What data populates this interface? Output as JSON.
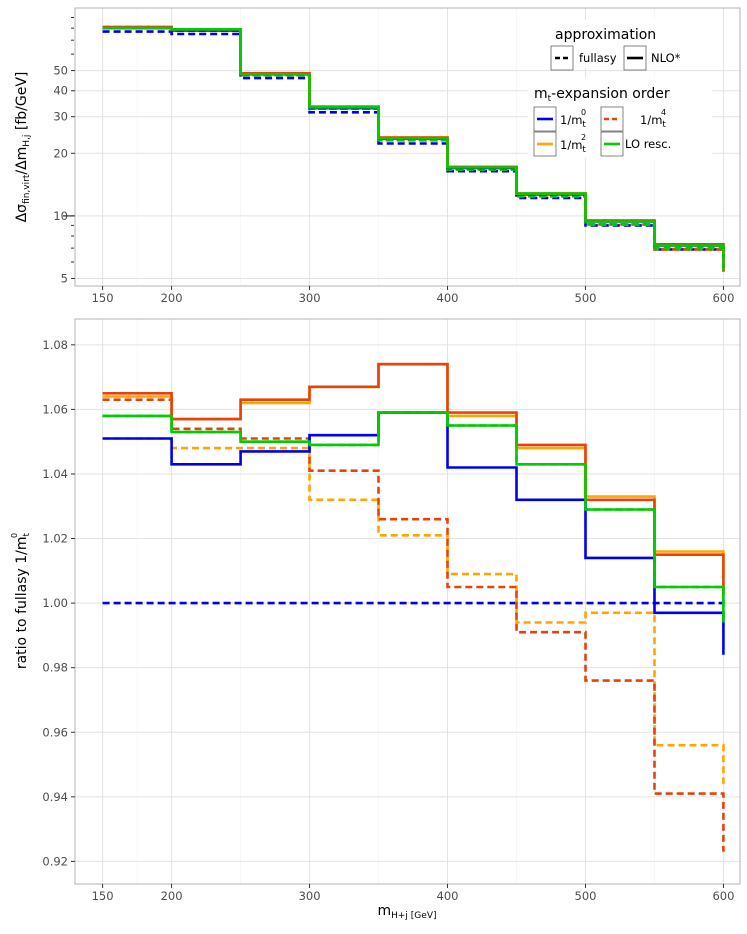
{
  "colors": {
    "mt0": "#0000ee",
    "mt2": "#ffa500",
    "mt4": "#e8420a",
    "lo": "#00cc00"
  },
  "legend": {
    "approx_title": "approximation",
    "approx_items": [
      "fullasy",
      "NLO*"
    ],
    "exp_title_main": "m",
    "exp_title_sub": "t",
    "exp_title_rest": "-expansion order",
    "exp_items": [
      {
        "pre": "1/m",
        "sub": "t",
        "sup": "0",
        "key": "mt0"
      },
      {
        "pre": "1/m",
        "sub": "t",
        "sup": "4",
        "key": "mt4"
      },
      {
        "pre": "1/m",
        "sub": "t",
        "sup": "2",
        "key": "mt2"
      },
      {
        "pre": "LO resc.",
        "sub": "",
        "sup": "",
        "key": "lo"
      }
    ]
  },
  "chart_data": [
    {
      "type": "line",
      "style": "step",
      "title": "",
      "ylabel": {
        "main": "Δσ",
        "sub1": "fin,virt",
        "mid": "/Δm",
        "sub2": "H,j",
        "rest": " [fb/GeV]"
      },
      "xlabel": "",
      "xlim": [
        130,
        612
      ],
      "ylim": [
        4.6,
        100
      ],
      "yscale": "log",
      "x_ticks": [
        150,
        200,
        300,
        400,
        500,
        600
      ],
      "y_ticks": [
        5,
        10,
        20,
        30,
        40,
        50
      ],
      "x_edges": [
        150,
        200,
        250,
        300,
        350,
        400,
        450,
        500,
        550,
        600
      ],
      "series": [
        {
          "name": "1/m_t^0 fullasy",
          "key": "mt0",
          "dash": true,
          "values": [
            77,
            75,
            46,
            31.5,
            22.3,
            16.4,
            12.2,
            9.0,
            6.9
          ]
        },
        {
          "name": "1/m_t^2 fullasy",
          "key": "mt2",
          "dash": true,
          "values": [
            80,
            78,
            47.5,
            32.8,
            23.2,
            16.8,
            12.5,
            9.1,
            6.9
          ]
        },
        {
          "name": "1/m_t^4 fullasy",
          "key": "mt4",
          "dash": true,
          "values": [
            81,
            78,
            47.5,
            32.8,
            23.2,
            16.8,
            12.5,
            9.1,
            6.9
          ]
        },
        {
          "name": "LO resc. fullasy",
          "key": "lo",
          "dash": true,
          "values": [
            80,
            78,
            47.5,
            32.8,
            23.1,
            16.7,
            12.4,
            9.1,
            7.0
          ]
        },
        {
          "name": "1/m_t^0 NLO*",
          "key": "mt0",
          "dash": false,
          "values": [
            80,
            78,
            48,
            33.0,
            23.5,
            17.0,
            12.7,
            9.4,
            7.2
          ]
        },
        {
          "name": "1/m_t^2 NLO*",
          "key": "mt2",
          "dash": false,
          "values": [
            81,
            79,
            48.5,
            33.5,
            23.8,
            17.2,
            12.8,
            9.5,
            7.3
          ]
        },
        {
          "name": "1/m_t^4 NLO*",
          "key": "mt4",
          "dash": false,
          "values": [
            81,
            79,
            48.5,
            33.5,
            23.8,
            17.2,
            12.8,
            9.5,
            7.3
          ]
        },
        {
          "name": "LO resc. NLO*",
          "key": "lo",
          "dash": false,
          "values": [
            80,
            79,
            48,
            33.3,
            23.6,
            17.1,
            12.8,
            9.4,
            7.2
          ]
        }
      ]
    },
    {
      "type": "line",
      "style": "step",
      "title": "",
      "ylabel": {
        "main": "ratio to fullasy  1/m",
        "sub": "t",
        "sup": "0"
      },
      "xlabel": {
        "main": "m",
        "sub": "H+j [GeV]"
      },
      "xlim": [
        130,
        612
      ],
      "ylim": [
        0.913,
        1.088
      ],
      "yscale": "linear",
      "x_ticks": [
        150,
        200,
        300,
        400,
        500,
        600
      ],
      "y_ticks": [
        0.92,
        0.94,
        0.96,
        0.98,
        1.0,
        1.02,
        1.04,
        1.06,
        1.08
      ],
      "y_tick_labels": [
        "0.92",
        "0.94",
        "0.96",
        "0.98",
        "1.00",
        "1.02",
        "1.04",
        "1.06",
        "1.08"
      ],
      "x_edges": [
        150,
        200,
        250,
        300,
        350,
        400,
        450,
        500,
        550,
        600
      ],
      "series": [
        {
          "name": "1/m_t^0 fullasy",
          "key": "mt0",
          "dash": true,
          "values": [
            1.0,
            1.0,
            1.0,
            1.0,
            1.0,
            1.0,
            1.0,
            1.0,
            1.0
          ]
        },
        {
          "name": "1/m_t^2 fullasy",
          "key": "mt2",
          "dash": true,
          "values": [
            1.051,
            1.048,
            1.048,
            1.032,
            1.021,
            1.009,
            0.994,
            0.997,
            0.956
          ]
        },
        {
          "name": "1/m_t^4 fullasy",
          "key": "mt4",
          "dash": true,
          "values": [
            1.063,
            1.054,
            1.051,
            1.041,
            1.026,
            1.005,
            0.991,
            0.976,
            0.941
          ]
        },
        {
          "name": "LO resc. fullasy",
          "key": "lo",
          "dash": true,
          "values": [
            1.058,
            1.053,
            1.05,
            1.049,
            1.059,
            1.055,
            1.043,
            1.029,
            1.005
          ]
        },
        {
          "name": "1/m_t^0 NLO*",
          "key": "mt0",
          "dash": false,
          "values": [
            1.051,
            1.043,
            1.047,
            1.052,
            1.059,
            1.042,
            1.032,
            1.014,
            0.997
          ]
        },
        {
          "name": "1/m_t^2 NLO*",
          "key": "mt2",
          "dash": false,
          "values": [
            1.064,
            1.057,
            1.062,
            1.067,
            1.074,
            1.058,
            1.048,
            1.033,
            1.016
          ]
        },
        {
          "name": "1/m_t^4 NLO*",
          "key": "mt4",
          "dash": false,
          "values": [
            1.065,
            1.057,
            1.063,
            1.067,
            1.074,
            1.059,
            1.049,
            1.032,
            1.015
          ]
        },
        {
          "name": "LO resc. NLO*",
          "key": "lo",
          "dash": false,
          "values": [
            1.058,
            1.053,
            1.05,
            1.049,
            1.059,
            1.055,
            1.043,
            1.029,
            1.005
          ]
        }
      ],
      "end_drops": {
        "mt0_NLO": 0.984,
        "lo_NLO": 0.994,
        "mt4_fullasy": 0.923
      }
    }
  ]
}
